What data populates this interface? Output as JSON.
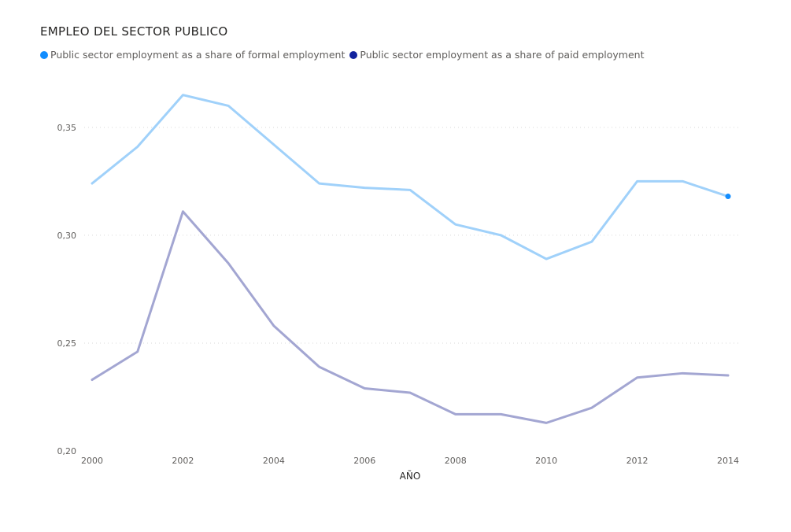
{
  "chart_data": {
    "type": "line",
    "title": "EMPLEO DEL SECTOR PUBLICO",
    "xlabel": "AÑO",
    "ylabel": "",
    "x": [
      2000,
      2001,
      2002,
      2003,
      2004,
      2005,
      2006,
      2007,
      2008,
      2009,
      2010,
      2011,
      2012,
      2013,
      2014
    ],
    "x_ticks": [
      "2000",
      "2002",
      "2004",
      "2006",
      "2008",
      "2010",
      "2012",
      "2014"
    ],
    "y_ticks": [
      "0,35",
      "0,30",
      "0,25",
      "0,20"
    ],
    "ylim": [
      0.2,
      0.37
    ],
    "grid": true,
    "legend_position": "top-left",
    "series": [
      {
        "name": "Public sector employment as a share of formal employment",
        "color": "#118DFF",
        "line_color": "#A0D1FA",
        "values": [
          0.324,
          0.341,
          0.365,
          0.36,
          0.342,
          0.324,
          0.322,
          0.321,
          0.305,
          0.3,
          0.289,
          0.297,
          0.325,
          0.325,
          0.318
        ]
      },
      {
        "name": "Public sector employment as a share of paid employment",
        "color": "#12239E",
        "line_color": "#A3A6D2",
        "values": [
          0.233,
          0.246,
          0.311,
          0.287,
          0.258,
          0.239,
          0.229,
          0.227,
          0.217,
          0.217,
          0.213,
          0.22,
          0.234,
          0.236,
          0.235
        ]
      }
    ]
  }
}
